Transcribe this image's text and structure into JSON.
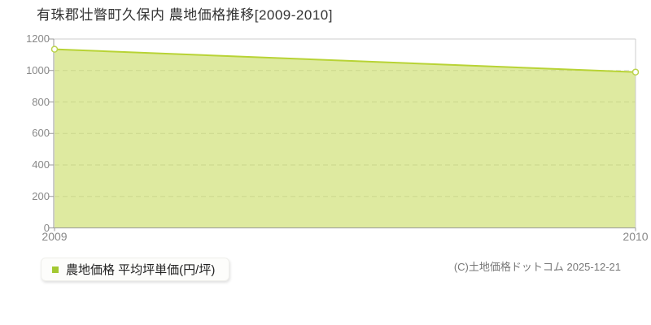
{
  "title": "有珠郡壮瞥町久保内 農地価格推移[2009-2010]",
  "legend": {
    "label": "農地価格 平均坪単価(円/坪)",
    "marker_color": "#a3c832"
  },
  "footer": {
    "copyright": "(C)土地価格ドットコム 2025-12-21"
  },
  "chart_data": {
    "type": "area",
    "title": "有珠郡壮瞥町久保内 農地価格推移[2009-2010]",
    "categories": [
      "2009",
      "2010"
    ],
    "series": [
      {
        "name": "農地価格 平均坪単価(円/坪)",
        "values": [
          1135,
          990
        ]
      }
    ],
    "xlabel": "",
    "ylabel": "平均坪単価(円/坪)",
    "ylim": [
      0,
      1200
    ],
    "ytick_labels": [
      "0",
      "200",
      "400",
      "600",
      "800",
      "1000",
      "1200"
    ],
    "grid": "horizontal-dashed",
    "legend_position": "bottom-left",
    "colors": {
      "line": "#b8d335",
      "fill": "rgba(184,211,53,0.47)",
      "marker_fill": "#ffffff",
      "marker_stroke": "#bcd44e",
      "grid": "#dcdcdc",
      "axis": "#999999",
      "plot_border": "#cccccc"
    }
  }
}
